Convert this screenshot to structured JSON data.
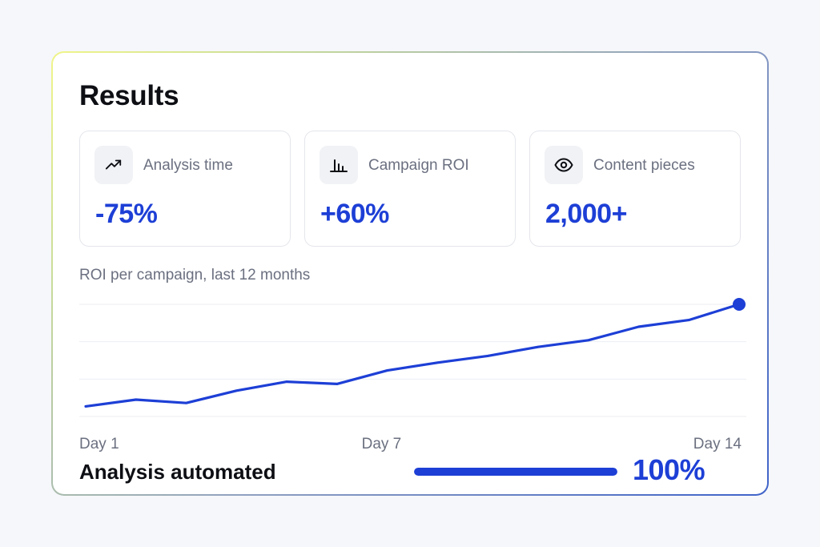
{
  "results": {
    "title": "Results"
  },
  "stats": [
    {
      "label": "Analysis time",
      "value": "-75%",
      "icon": "trending-up-icon"
    },
    {
      "label": "Campaign ROI",
      "value": "+60%",
      "icon": "bar-chart-icon"
    },
    {
      "label": "Content pieces",
      "value": "2,000+",
      "icon": "eye-icon"
    }
  ],
  "chart_data": {
    "type": "line",
    "title": "ROI per campaign, last 12 months",
    "x": [
      1,
      2,
      3,
      4,
      5,
      6,
      7,
      8,
      9,
      10,
      11,
      12,
      13,
      14
    ],
    "tick_labels": [
      "Day 1",
      "Day 7",
      "Day 14"
    ],
    "tick_positions": [
      1,
      7,
      14
    ],
    "series": [
      {
        "values": [
          0.09,
          0.15,
          0.12,
          0.23,
          0.31,
          0.29,
          0.41,
          0.48,
          0.54,
          0.62,
          0.68,
          0.8,
          0.86,
          1.0
        ],
        "color": "#1d3fd6"
      }
    ],
    "ylim": [
      0,
      1
    ],
    "grid": true,
    "end_marker": true
  },
  "footer": {
    "label": "Analysis automated",
    "progress": 100,
    "progress_label": "100%"
  },
  "colors": {
    "accent": "#1d3fd6",
    "muted_text": "#6b7080",
    "grid": "#eceef2"
  }
}
